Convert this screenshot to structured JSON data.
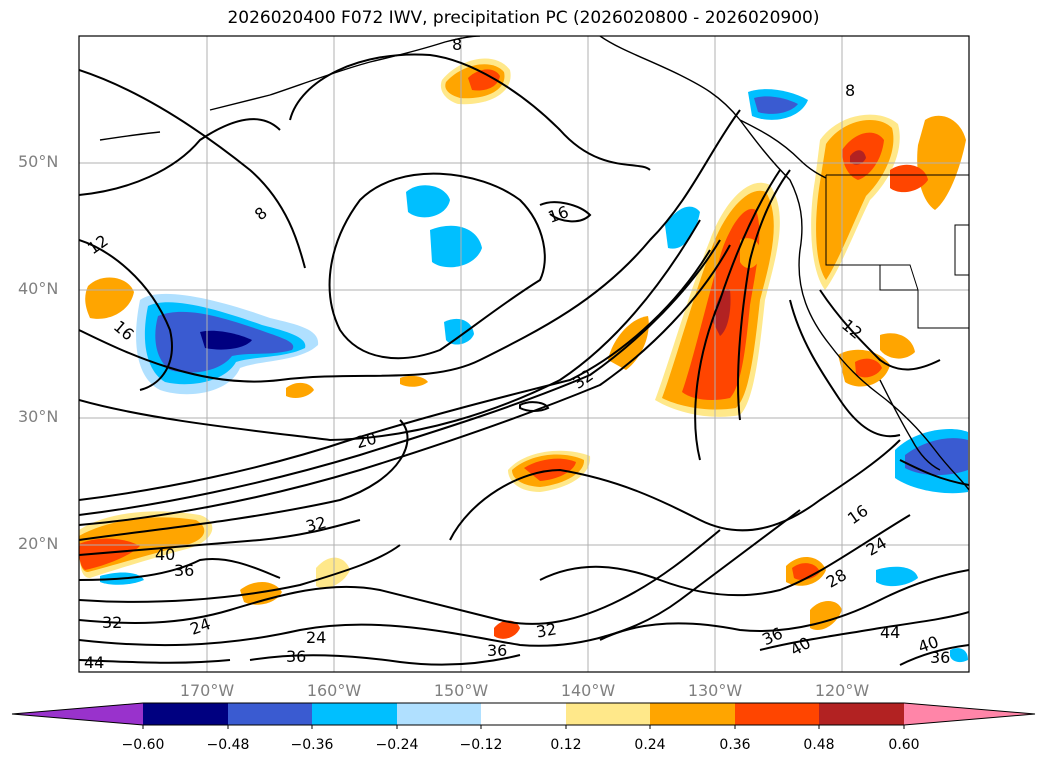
{
  "title": "2026020400 F072 IWV, precipitation PC (2026020800 - 2026020900)",
  "map": {
    "lon_range": [
      -180,
      -110
    ],
    "lat_range": [
      10,
      60
    ],
    "lat_labels": [
      "50°N",
      "40°N",
      "30°N",
      "20°N"
    ],
    "lon_labels": [
      "170°W",
      "160°W",
      "150°W",
      "140°W",
      "130°W",
      "120°W"
    ],
    "gridlines": true,
    "iwv_contour_labels": [
      "8",
      "8",
      "8",
      "12",
      "12",
      "16",
      "16",
      "16",
      "20",
      "24",
      "24",
      "24",
      "28",
      "32",
      "32",
      "32",
      "32",
      "36",
      "36",
      "36",
      "36",
      "36",
      "40",
      "40",
      "40",
      "44",
      "44"
    ]
  },
  "colorbar": {
    "ticks": [
      "−0.60",
      "−0.48",
      "−0.36",
      "−0.24",
      "−0.12",
      "0.12",
      "0.24",
      "0.36",
      "0.48",
      "0.60"
    ],
    "colors": {
      "lt_-0.60": "#9932cc",
      "-0.60_-0.48": "#000080",
      "-0.48_-0.36": "#3a5bd1",
      "-0.36_-0.24": "#00bfff",
      "-0.24_-0.12": "#b0e0ff",
      "-0.12_0.12": "#ffffff",
      "0.12_0.24": "#ffe88a",
      "0.24_0.36": "#ffa500",
      "0.36_0.48": "#ff4500",
      "0.48_0.60": "#b22222",
      "gt_0.60": "#ff85a8"
    }
  }
}
